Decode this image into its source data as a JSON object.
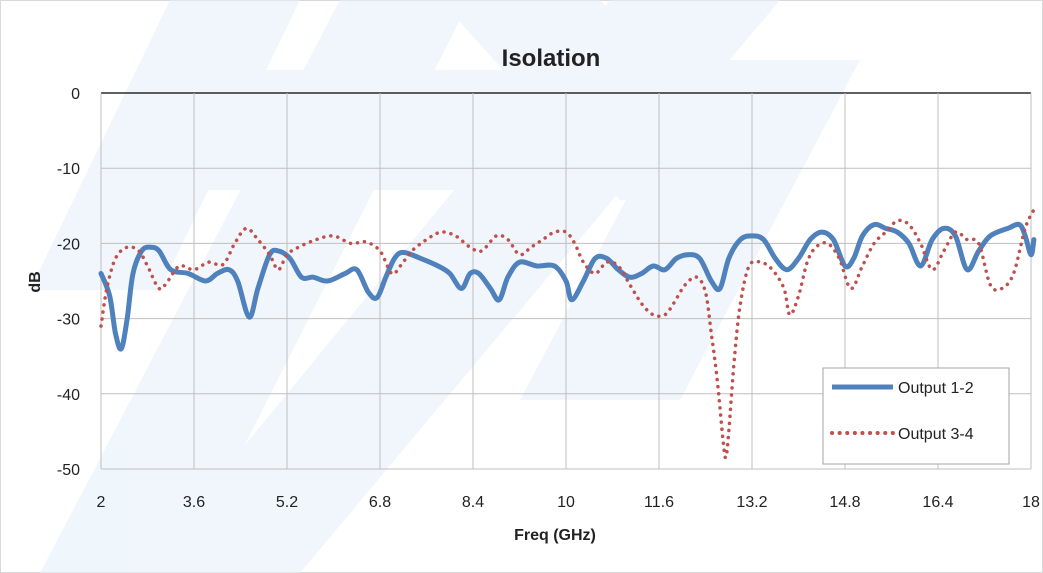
{
  "chart_data": {
    "type": "line",
    "title": "Isolation",
    "xlabel": "Freq (GHz)",
    "ylabel": "dB",
    "xlim": [
      2,
      18
    ],
    "ylim": [
      -50,
      0
    ],
    "x_ticks": [
      2,
      3.6,
      5.2,
      6.8,
      8.4,
      10,
      11.6,
      13.2,
      14.8,
      16.4,
      18
    ],
    "y_ticks": [
      0,
      -10,
      -20,
      -30,
      -40,
      -50
    ],
    "x_tick_labels": [
      "2",
      "3.6",
      "5.2",
      "6.8",
      "8.4",
      "10",
      "11.6",
      "13.2",
      "14.8",
      "16.4",
      "18"
    ],
    "y_tick_labels": [
      "0",
      "-10",
      "-20",
      "-30",
      "-40",
      "-50"
    ],
    "grid": true,
    "legend_position": "bottom-right",
    "series": [
      {
        "name": "Output 1-2",
        "color": "#4f81bd",
        "style": "solid",
        "points": [
          [
            2.0,
            -24
          ],
          [
            2.15,
            -27
          ],
          [
            2.25,
            -32
          ],
          [
            2.35,
            -34
          ],
          [
            2.45,
            -30
          ],
          [
            2.55,
            -24
          ],
          [
            2.7,
            -21
          ],
          [
            2.85,
            -20.5
          ],
          [
            3.0,
            -21
          ],
          [
            3.2,
            -23.5
          ],
          [
            3.5,
            -24
          ],
          [
            3.8,
            -25
          ],
          [
            4.0,
            -24
          ],
          [
            4.2,
            -23.5
          ],
          [
            4.35,
            -25
          ],
          [
            4.55,
            -29.8
          ],
          [
            4.7,
            -26
          ],
          [
            4.9,
            -21.5
          ],
          [
            5.05,
            -21
          ],
          [
            5.25,
            -22
          ],
          [
            5.45,
            -24.5
          ],
          [
            5.65,
            -24.5
          ],
          [
            5.9,
            -25
          ],
          [
            6.2,
            -24
          ],
          [
            6.4,
            -23.5
          ],
          [
            6.6,
            -26.5
          ],
          [
            6.75,
            -27.2
          ],
          [
            6.9,
            -24.5
          ],
          [
            7.05,
            -22
          ],
          [
            7.2,
            -21.2
          ],
          [
            7.5,
            -22
          ],
          [
            7.8,
            -23
          ],
          [
            8.0,
            -24
          ],
          [
            8.2,
            -26
          ],
          [
            8.35,
            -24
          ],
          [
            8.5,
            -24
          ],
          [
            8.7,
            -26
          ],
          [
            8.85,
            -27.5
          ],
          [
            9.0,
            -24.5
          ],
          [
            9.2,
            -22.5
          ],
          [
            9.5,
            -23
          ],
          [
            9.8,
            -23
          ],
          [
            10.0,
            -25
          ],
          [
            10.1,
            -27.5
          ],
          [
            10.3,
            -25
          ],
          [
            10.5,
            -22
          ],
          [
            10.7,
            -22
          ],
          [
            10.9,
            -23.5
          ],
          [
            11.1,
            -24.5
          ],
          [
            11.3,
            -24
          ],
          [
            11.5,
            -23
          ],
          [
            11.7,
            -23.5
          ],
          [
            11.9,
            -22
          ],
          [
            12.1,
            -21.5
          ],
          [
            12.3,
            -22
          ],
          [
            12.5,
            -25
          ],
          [
            12.65,
            -26
          ],
          [
            12.8,
            -22
          ],
          [
            13.0,
            -19.5
          ],
          [
            13.2,
            -19
          ],
          [
            13.4,
            -19.5
          ],
          [
            13.6,
            -22
          ],
          [
            13.8,
            -23.5
          ],
          [
            14.0,
            -22
          ],
          [
            14.2,
            -19.5
          ],
          [
            14.4,
            -18.5
          ],
          [
            14.6,
            -19.5
          ],
          [
            14.8,
            -23
          ],
          [
            14.95,
            -22
          ],
          [
            15.1,
            -19
          ],
          [
            15.3,
            -17.5
          ],
          [
            15.5,
            -18
          ],
          [
            15.7,
            -18.5
          ],
          [
            15.9,
            -20
          ],
          [
            16.1,
            -23
          ],
          [
            16.3,
            -19.5
          ],
          [
            16.5,
            -18
          ],
          [
            16.7,
            -19
          ],
          [
            16.9,
            -23.5
          ],
          [
            17.1,
            -21
          ],
          [
            17.3,
            -19
          ],
          [
            17.6,
            -18
          ],
          [
            17.8,
            -17.5
          ],
          [
            17.9,
            -19
          ],
          [
            18.0,
            -21.5
          ],
          [
            18.05,
            -19.5
          ]
        ]
      },
      {
        "name": "Output 3-4",
        "color": "#c0504d",
        "style": "dotted",
        "points": [
          [
            2.0,
            -31
          ],
          [
            2.1,
            -26
          ],
          [
            2.25,
            -22
          ],
          [
            2.45,
            -20.5
          ],
          [
            2.65,
            -21
          ],
          [
            2.8,
            -23
          ],
          [
            3.0,
            -26
          ],
          [
            3.15,
            -25
          ],
          [
            3.35,
            -23
          ],
          [
            3.6,
            -23.5
          ],
          [
            3.85,
            -22.5
          ],
          [
            4.1,
            -22.8
          ],
          [
            4.3,
            -20
          ],
          [
            4.5,
            -18
          ],
          [
            4.7,
            -19.5
          ],
          [
            4.9,
            -21.5
          ],
          [
            5.05,
            -23.5
          ],
          [
            5.2,
            -21.5
          ],
          [
            5.4,
            -20.5
          ],
          [
            5.7,
            -19.5
          ],
          [
            6.0,
            -19
          ],
          [
            6.3,
            -20
          ],
          [
            6.55,
            -19.8
          ],
          [
            6.8,
            -21
          ],
          [
            7.0,
            -24
          ],
          [
            7.15,
            -23
          ],
          [
            7.35,
            -21
          ],
          [
            7.6,
            -19.5
          ],
          [
            7.85,
            -18.5
          ],
          [
            8.1,
            -19
          ],
          [
            8.35,
            -20.5
          ],
          [
            8.55,
            -21
          ],
          [
            8.8,
            -19
          ],
          [
            9.0,
            -19.5
          ],
          [
            9.2,
            -21.5
          ],
          [
            9.4,
            -20.5
          ],
          [
            9.6,
            -19.5
          ],
          [
            9.8,
            -18.5
          ],
          [
            10.0,
            -18.5
          ],
          [
            10.15,
            -20
          ],
          [
            10.3,
            -22.5
          ],
          [
            10.5,
            -24
          ],
          [
            10.7,
            -22.5
          ],
          [
            10.9,
            -23
          ],
          [
            11.1,
            -25.5
          ],
          [
            11.3,
            -28
          ],
          [
            11.5,
            -29.5
          ],
          [
            11.7,
            -29.5
          ],
          [
            11.85,
            -28
          ],
          [
            12.05,
            -25.5
          ],
          [
            12.25,
            -24.5
          ],
          [
            12.4,
            -26.5
          ],
          [
            12.5,
            -32
          ],
          [
            12.6,
            -38
          ],
          [
            12.7,
            -46
          ],
          [
            12.75,
            -48.5
          ],
          [
            12.8,
            -45
          ],
          [
            12.9,
            -35
          ],
          [
            13.0,
            -28
          ],
          [
            13.15,
            -23
          ],
          [
            13.35,
            -22.5
          ],
          [
            13.55,
            -23.5
          ],
          [
            13.75,
            -26
          ],
          [
            13.85,
            -29.5
          ],
          [
            14.0,
            -27
          ],
          [
            14.15,
            -22.5
          ],
          [
            14.3,
            -20.5
          ],
          [
            14.5,
            -20
          ],
          [
            14.7,
            -22
          ],
          [
            14.9,
            -26
          ],
          [
            15.1,
            -23
          ],
          [
            15.3,
            -20
          ],
          [
            15.5,
            -18.5
          ],
          [
            15.7,
            -17
          ],
          [
            15.9,
            -17.5
          ],
          [
            16.1,
            -20
          ],
          [
            16.3,
            -23.5
          ],
          [
            16.5,
            -21
          ],
          [
            16.7,
            -18.5
          ],
          [
            16.9,
            -19.5
          ],
          [
            17.1,
            -20
          ],
          [
            17.3,
            -25.5
          ],
          [
            17.5,
            -26
          ],
          [
            17.7,
            -24
          ],
          [
            17.9,
            -18
          ],
          [
            18.05,
            -15.5
          ]
        ]
      }
    ]
  }
}
